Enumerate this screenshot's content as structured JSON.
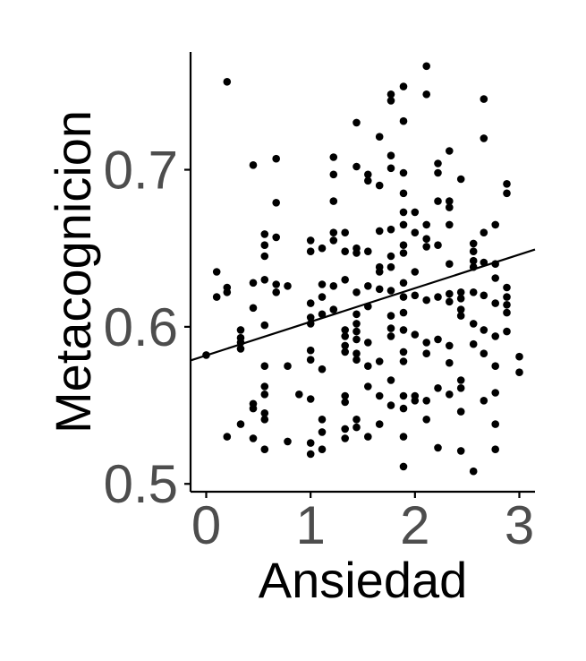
{
  "chart_data": {
    "type": "scatter",
    "title": "",
    "xlabel": "Ansiedad",
    "ylabel": "Metacognicion",
    "xlim": [
      -0.15,
      3.15
    ],
    "ylim": [
      0.495,
      0.775
    ],
    "x_ticks": [
      0,
      1,
      2,
      3
    ],
    "x_tick_labels": [
      "0",
      "1",
      "2",
      "3"
    ],
    "y_ticks": [
      0.5,
      0.6,
      0.7
    ],
    "y_tick_labels": [
      "0.5",
      "0.6",
      "0.7"
    ],
    "grid": false,
    "legend": "none",
    "point_color": "#000000",
    "trend_line": {
      "x": [
        -0.15,
        3.15
      ],
      "y": [
        0.5786,
        0.6492
      ]
    },
    "points": [
      [
        0.0,
        0.582
      ],
      [
        0.1,
        0.635
      ],
      [
        0.1,
        0.619
      ],
      [
        0.2,
        0.756
      ],
      [
        0.2,
        0.625
      ],
      [
        0.2,
        0.622
      ],
      [
        0.2,
        0.53
      ],
      [
        0.33,
        0.598
      ],
      [
        0.33,
        0.593
      ],
      [
        0.33,
        0.59
      ],
      [
        0.33,
        0.586
      ],
      [
        0.33,
        0.538
      ],
      [
        0.45,
        0.703
      ],
      [
        0.45,
        0.628
      ],
      [
        0.45,
        0.612
      ],
      [
        0.45,
        0.551
      ],
      [
        0.45,
        0.548
      ],
      [
        0.45,
        0.529
      ],
      [
        0.56,
        0.659
      ],
      [
        0.56,
        0.652
      ],
      [
        0.56,
        0.645
      ],
      [
        0.56,
        0.63
      ],
      [
        0.56,
        0.601
      ],
      [
        0.56,
        0.575
      ],
      [
        0.56,
        0.562
      ],
      [
        0.56,
        0.557
      ],
      [
        0.56,
        0.545
      ],
      [
        0.56,
        0.541
      ],
      [
        0.56,
        0.522
      ],
      [
        0.67,
        0.707
      ],
      [
        0.67,
        0.679
      ],
      [
        0.67,
        0.657
      ],
      [
        0.67,
        0.627
      ],
      [
        0.67,
        0.622
      ],
      [
        0.78,
        0.626
      ],
      [
        0.78,
        0.575
      ],
      [
        0.78,
        0.527
      ],
      [
        0.89,
        0.557
      ],
      [
        1.0,
        0.655
      ],
      [
        1.0,
        0.648
      ],
      [
        1.0,
        0.615
      ],
      [
        1.0,
        0.606
      ],
      [
        1.0,
        0.602
      ],
      [
        1.0,
        0.585
      ],
      [
        1.0,
        0.579
      ],
      [
        1.0,
        0.554
      ],
      [
        1.0,
        0.526
      ],
      [
        1.0,
        0.519
      ],
      [
        1.11,
        0.65
      ],
      [
        1.11,
        0.627
      ],
      [
        1.11,
        0.619
      ],
      [
        1.11,
        0.608
      ],
      [
        1.11,
        0.573
      ],
      [
        1.11,
        0.541
      ],
      [
        1.11,
        0.533
      ],
      [
        1.11,
        0.522
      ],
      [
        1.22,
        0.708
      ],
      [
        1.22,
        0.697
      ],
      [
        1.22,
        0.68
      ],
      [
        1.22,
        0.66
      ],
      [
        1.22,
        0.655
      ],
      [
        1.22,
        0.626
      ],
      [
        1.22,
        0.611
      ],
      [
        1.33,
        0.66
      ],
      [
        1.33,
        0.648
      ],
      [
        1.33,
        0.63
      ],
      [
        1.33,
        0.598
      ],
      [
        1.33,
        0.594
      ],
      [
        1.33,
        0.588
      ],
      [
        1.33,
        0.584
      ],
      [
        1.33,
        0.556
      ],
      [
        1.33,
        0.552
      ],
      [
        1.33,
        0.535
      ],
      [
        1.33,
        0.529
      ],
      [
        1.44,
        0.73
      ],
      [
        1.44,
        0.702
      ],
      [
        1.44,
        0.65
      ],
      [
        1.44,
        0.647
      ],
      [
        1.44,
        0.622
      ],
      [
        1.44,
        0.608
      ],
      [
        1.44,
        0.602
      ],
      [
        1.44,
        0.597
      ],
      [
        1.44,
        0.592
      ],
      [
        1.44,
        0.583
      ],
      [
        1.44,
        0.579
      ],
      [
        1.44,
        0.541
      ],
      [
        1.44,
        0.536
      ],
      [
        1.55,
        0.697
      ],
      [
        1.55,
        0.693
      ],
      [
        1.55,
        0.648
      ],
      [
        1.55,
        0.626
      ],
      [
        1.55,
        0.613
      ],
      [
        1.55,
        0.59
      ],
      [
        1.55,
        0.575
      ],
      [
        1.55,
        0.562
      ],
      [
        1.55,
        0.53
      ],
      [
        1.66,
        0.721
      ],
      [
        1.66,
        0.69
      ],
      [
        1.66,
        0.661
      ],
      [
        1.66,
        0.638
      ],
      [
        1.66,
        0.635
      ],
      [
        1.66,
        0.624
      ],
      [
        1.66,
        0.578
      ],
      [
        1.66,
        0.556
      ],
      [
        1.66,
        0.538
      ],
      [
        1.77,
        0.748
      ],
      [
        1.77,
        0.744
      ],
      [
        1.77,
        0.709
      ],
      [
        1.77,
        0.701
      ],
      [
        1.77,
        0.662
      ],
      [
        1.77,
        0.645
      ],
      [
        1.77,
        0.638
      ],
      [
        1.77,
        0.623
      ],
      [
        1.77,
        0.607
      ],
      [
        1.77,
        0.599
      ],
      [
        1.77,
        0.594
      ],
      [
        1.77,
        0.566
      ],
      [
        1.77,
        0.55
      ],
      [
        1.89,
        0.753
      ],
      [
        1.89,
        0.731
      ],
      [
        1.89,
        0.698
      ],
      [
        1.89,
        0.685
      ],
      [
        1.89,
        0.673
      ],
      [
        1.89,
        0.665
      ],
      [
        1.89,
        0.652
      ],
      [
        1.89,
        0.647
      ],
      [
        1.89,
        0.628
      ],
      [
        1.89,
        0.619
      ],
      [
        1.89,
        0.609
      ],
      [
        1.89,
        0.598
      ],
      [
        1.89,
        0.584
      ],
      [
        1.89,
        0.578
      ],
      [
        1.89,
        0.556
      ],
      [
        1.89,
        0.548
      ],
      [
        1.89,
        0.53
      ],
      [
        1.89,
        0.511
      ],
      [
        2.0,
        0.673
      ],
      [
        2.0,
        0.66
      ],
      [
        2.0,
        0.635
      ],
      [
        2.0,
        0.62
      ],
      [
        2.0,
        0.595
      ],
      [
        2.0,
        0.556
      ],
      [
        2.0,
        0.553
      ],
      [
        2.11,
        0.766
      ],
      [
        2.11,
        0.748
      ],
      [
        2.11,
        0.665
      ],
      [
        2.11,
        0.656
      ],
      [
        2.11,
        0.651
      ],
      [
        2.11,
        0.617
      ],
      [
        2.11,
        0.59
      ],
      [
        2.11,
        0.583
      ],
      [
        2.11,
        0.553
      ],
      [
        2.11,
        0.541
      ],
      [
        2.22,
        0.704
      ],
      [
        2.22,
        0.698
      ],
      [
        2.22,
        0.68
      ],
      [
        2.22,
        0.652
      ],
      [
        2.22,
        0.619
      ],
      [
        2.22,
        0.592
      ],
      [
        2.22,
        0.561
      ],
      [
        2.22,
        0.523
      ],
      [
        2.33,
        0.712
      ],
      [
        2.33,
        0.68
      ],
      [
        2.33,
        0.676
      ],
      [
        2.33,
        0.665
      ],
      [
        2.33,
        0.64
      ],
      [
        2.33,
        0.621
      ],
      [
        2.33,
        0.616
      ],
      [
        2.33,
        0.588
      ],
      [
        2.33,
        0.577
      ],
      [
        2.33,
        0.557
      ],
      [
        2.44,
        0.694
      ],
      [
        2.44,
        0.622
      ],
      [
        2.44,
        0.618
      ],
      [
        2.44,
        0.611
      ],
      [
        2.44,
        0.607
      ],
      [
        2.44,
        0.566
      ],
      [
        2.44,
        0.561
      ],
      [
        2.44,
        0.546
      ],
      [
        2.44,
        0.521
      ],
      [
        2.56,
        0.653
      ],
      [
        2.56,
        0.648
      ],
      [
        2.56,
        0.642
      ],
      [
        2.56,
        0.638
      ],
      [
        2.56,
        0.622
      ],
      [
        2.56,
        0.602
      ],
      [
        2.56,
        0.589
      ],
      [
        2.56,
        0.508
      ],
      [
        2.66,
        0.745
      ],
      [
        2.66,
        0.72
      ],
      [
        2.66,
        0.66
      ],
      [
        2.66,
        0.641
      ],
      [
        2.66,
        0.62
      ],
      [
        2.66,
        0.598
      ],
      [
        2.66,
        0.583
      ],
      [
        2.66,
        0.553
      ],
      [
        2.77,
        0.665
      ],
      [
        2.77,
        0.64
      ],
      [
        2.77,
        0.631
      ],
      [
        2.77,
        0.615
      ],
      [
        2.77,
        0.594
      ],
      [
        2.77,
        0.575
      ],
      [
        2.77,
        0.558
      ],
      [
        2.77,
        0.538
      ],
      [
        2.77,
        0.522
      ],
      [
        2.88,
        0.691
      ],
      [
        2.88,
        0.685
      ],
      [
        2.88,
        0.625
      ],
      [
        2.88,
        0.619
      ],
      [
        2.88,
        0.614
      ],
      [
        2.88,
        0.609
      ],
      [
        2.88,
        0.597
      ],
      [
        3.0,
        0.581
      ],
      [
        3.0,
        0.571
      ]
    ]
  }
}
